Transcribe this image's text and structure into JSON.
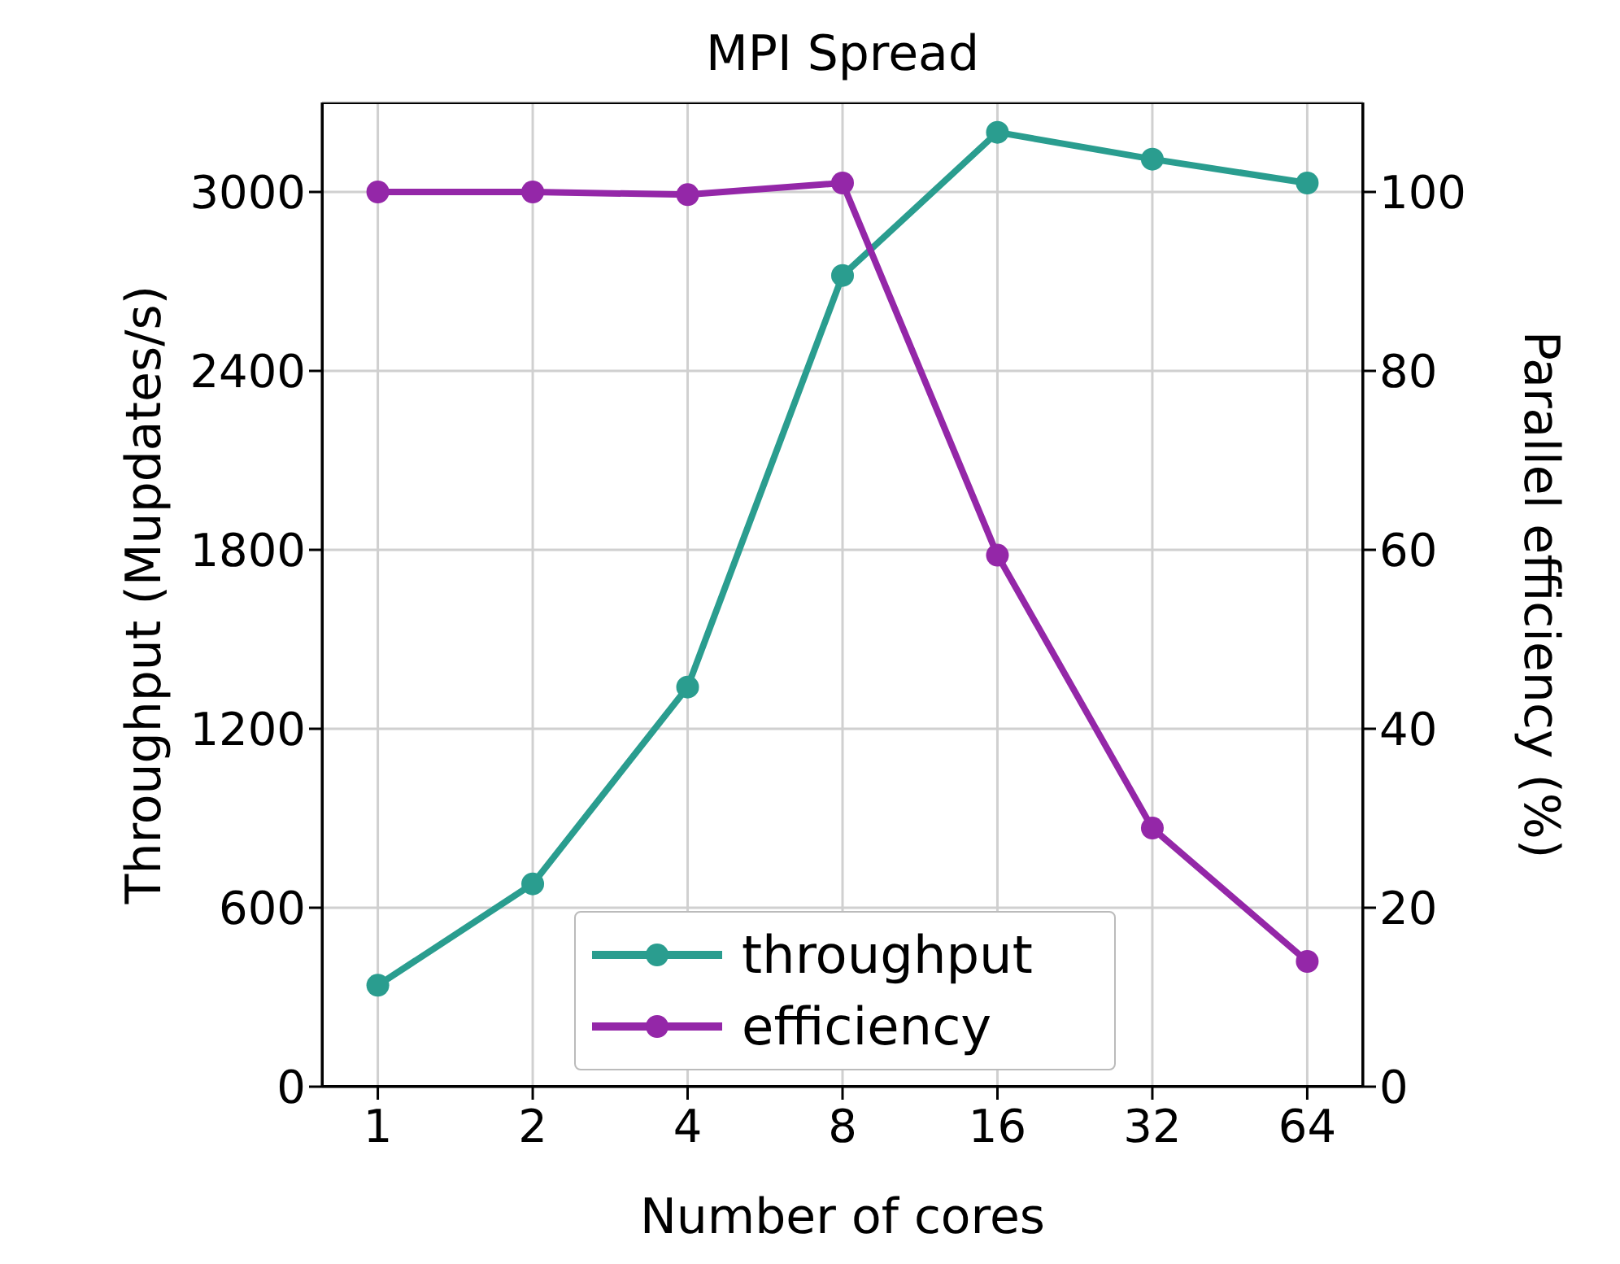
{
  "chart_data": {
    "type": "line",
    "title": "MPI Spread",
    "xlabel": "Number of cores",
    "ylabel": "Throughput (Mupdates/s)",
    "y2label": "Parallel efficiency (%)",
    "categories": [
      "1",
      "2",
      "4",
      "8",
      "16",
      "32",
      "64"
    ],
    "series": [
      {
        "name": "throughput",
        "color": "#2a9d8f",
        "values": [
          340,
          680,
          1340,
          2720,
          3200,
          3110,
          3030
        ]
      },
      {
        "name": "efficiency",
        "color": "#9427a8",
        "axis": "y2",
        "values": [
          100,
          100,
          99.7,
          101,
          59.4,
          28.9,
          14.0
        ]
      }
    ],
    "ylim": [
      0,
      3300
    ],
    "yticks": [
      0,
      600,
      1200,
      1800,
      2400,
      3000
    ],
    "y2lim": [
      0,
      110
    ],
    "y2ticks": [
      0,
      20,
      40,
      60,
      80,
      100
    ],
    "grid": true,
    "legend": "bottom",
    "marker": "circle",
    "line_style": "solid"
  }
}
